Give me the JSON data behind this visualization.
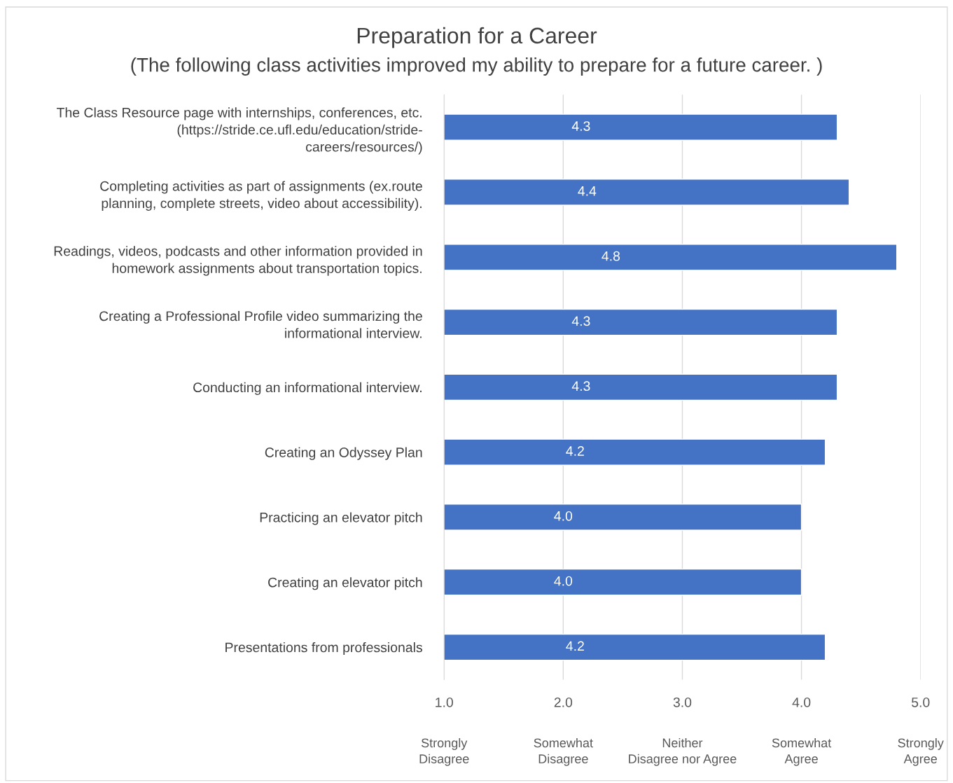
{
  "chart_data": {
    "type": "bar",
    "orientation": "horizontal",
    "title": "Preparation for a Career",
    "subtitle": "(The following class activities improved my ability to prepare for a future career. )",
    "categories": [
      "The Class Resource page with internships, conferences, etc.\n(https://stride.ce.ufl.edu/education/stride-\ncareers/resources/)",
      "Completing activities as part of assignments (ex.route\nplanning, complete streets, video about accessibility).",
      "Readings, videos, podcasts and other information provided in\nhomework assignments about transportation topics.",
      "Creating a Professional Profile video summarizing the\ninformational interview.",
      "Conducting an informational interview.",
      "Creating an Odyssey Plan",
      "Practicing an elevator pitch",
      "Creating an elevator pitch",
      "Presentations from professionals"
    ],
    "values": [
      4.3,
      4.4,
      4.8,
      4.3,
      4.3,
      4.2,
      4.0,
      4.0,
      4.2
    ],
    "color": "#4472c4",
    "value_labels": [
      "4.3",
      "4.4",
      "4.8",
      "4.3",
      "4.3",
      "4.2",
      "4.0",
      "4.0",
      "4.2"
    ],
    "xlim": [
      1,
      5
    ],
    "xticks": [
      {
        "value": 1,
        "label": "1.0"
      },
      {
        "value": 2,
        "label": "2.0"
      },
      {
        "value": 3,
        "label": "3.0"
      },
      {
        "value": 4,
        "label": "4.0"
      },
      {
        "value": 5,
        "label": "5.0"
      }
    ],
    "annotations": [
      "Strongly\nDisagree",
      "Somewhat\nDisagree",
      "Neither\nDisagree nor Agree",
      "Somewhat\nAgree",
      "Strongly\nAgree"
    ],
    "grid": "x",
    "legend": false
  }
}
